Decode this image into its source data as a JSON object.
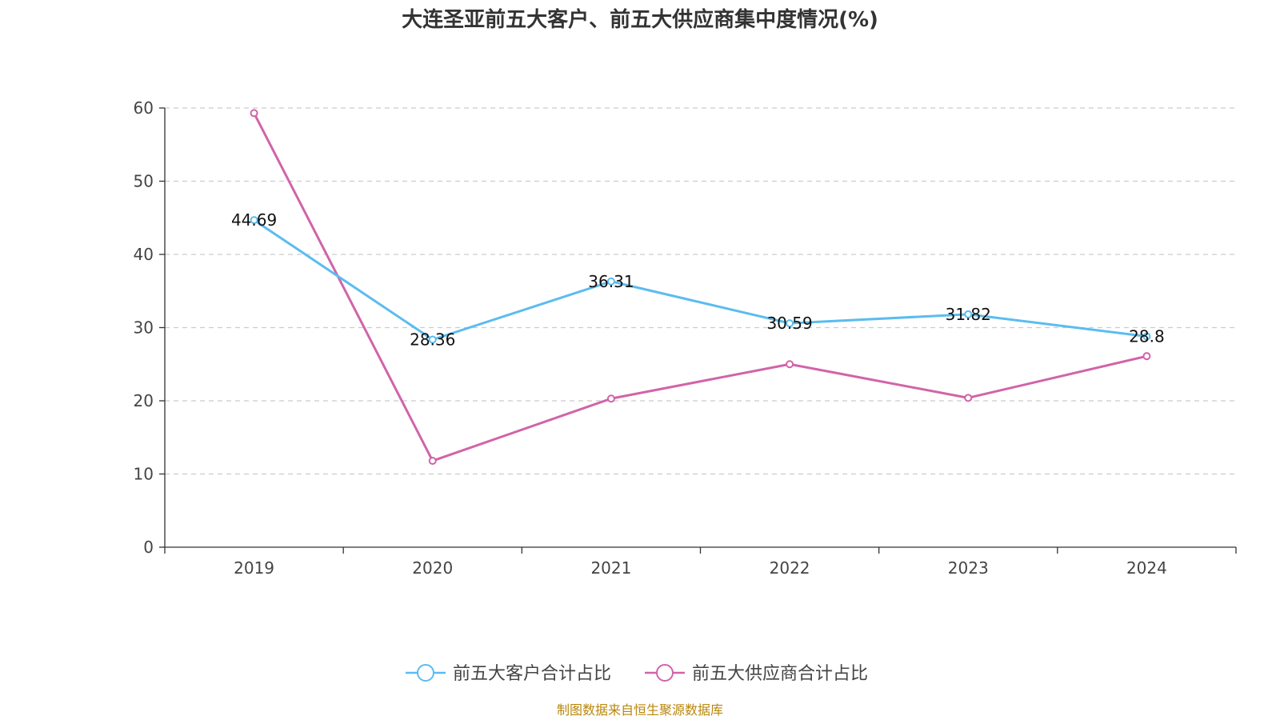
{
  "chart_data": {
    "type": "line",
    "title": "大连圣亚前五大客户、前五大供应商集中度情况(%)",
    "categories": [
      "2019",
      "2020",
      "2021",
      "2022",
      "2023",
      "2024"
    ],
    "ylim": [
      0,
      60
    ],
    "yticks": [
      0,
      10,
      20,
      30,
      40,
      50,
      60
    ],
    "grid": true,
    "legend_position": "bottom",
    "series": [
      {
        "name": "前五大客户合计占比",
        "color": "#5bbcef",
        "values": [
          44.69,
          28.36,
          36.31,
          30.59,
          31.82,
          28.8
        ],
        "labels": [
          "44.69",
          "28.36",
          "36.31",
          "30.59",
          "31.82",
          "28.8"
        ],
        "show_labels": true
      },
      {
        "name": "前五大供应商合计占比",
        "color": "#d164a9",
        "values": [
          59.3,
          11.8,
          20.3,
          25.0,
          20.4,
          26.1
        ],
        "show_labels": false
      }
    ]
  },
  "source": "制图数据来自恒生聚源数据库"
}
